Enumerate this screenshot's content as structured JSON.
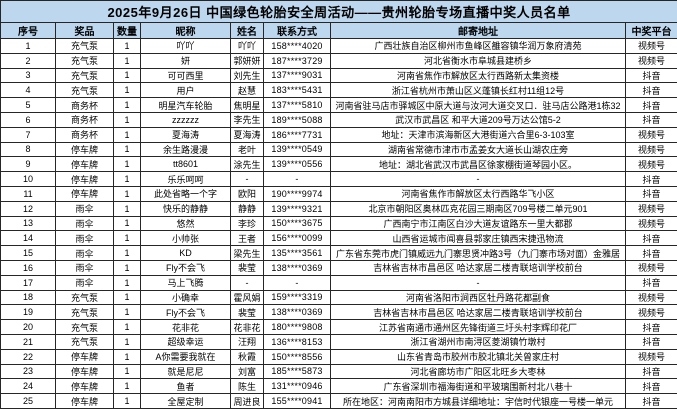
{
  "title": "2025年9月26日 中国绿色轮胎安全周活动——贵州轮胎专场直播中奖人员名单",
  "columns": [
    "序号",
    "奖品",
    "数量",
    "昵称",
    "姓名",
    "联系方式",
    "邮寄地址",
    "中奖平台"
  ],
  "colors": {
    "header_bg": "#bdd7ee",
    "border": "#262626",
    "row_bg": "#ffffff",
    "text": "#000000"
  },
  "rows": [
    {
      "no": "1",
      "prize": "充气泵",
      "qty": "1",
      "nickname": "吖吖",
      "name": "吖吖",
      "contact": "158****4020",
      "address": "广西壮族自治区柳州市鱼峰区雒容镇华润万象府清苑",
      "platform": "视频号"
    },
    {
      "no": "2",
      "prize": "充气泵",
      "qty": "1",
      "nickname": "妍",
      "name": "郭妍妍",
      "contact": "187****3729",
      "address": "河北省衡水市阜城县建桥乡",
      "platform": "视频号"
    },
    {
      "no": "3",
      "prize": "充气泵",
      "qty": "1",
      "nickname": "可可西里",
      "name": "刘先生",
      "contact": "137****9031",
      "address": "河南省焦作市解放区太行西路新太集资楼",
      "platform": "抖音"
    },
    {
      "no": "4",
      "prize": "充气泵",
      "qty": "1",
      "nickname": "用户",
      "name": "赵慧",
      "contact": "183****5431",
      "address": "浙江省杭州市萧山区义蓬镇长红村11组12号",
      "platform": "抖音"
    },
    {
      "no": "5",
      "prize": "商务杯",
      "qty": "1",
      "nickname": "明星汽车轮胎",
      "name": "焦明星",
      "contact": "137****5810",
      "address": "河南省驻马店市驿城区中原大道与汝河大道交叉口．驻马店公路港1栋32",
      "platform": "抖音"
    },
    {
      "no": "6",
      "prize": "商务杯",
      "qty": "1",
      "nickname": "zzzzzz",
      "name": "李先生",
      "contact": "189****5088",
      "address": "武汉市武昌区 和平大道209号万达公馆5-2",
      "platform": "抖音"
    },
    {
      "no": "7",
      "prize": "商务杯",
      "qty": "1",
      "nickname": "夏海涛",
      "name": "夏海涛",
      "contact": "186****7731",
      "address": "地址：天津市滨海新区大港街道六合里6-3-103室",
      "platform": "视频号"
    },
    {
      "no": "8",
      "prize": "停车牌",
      "qty": "1",
      "nickname": "余生路漫漫",
      "name": "老叶",
      "contact": "139****0549",
      "address": "湖南省常德市津市市孟姜女大道长山湖农庄旁",
      "platform": "视频号"
    },
    {
      "no": "9",
      "prize": "停车牌",
      "qty": "1",
      "nickname": "tt8601",
      "name": "涂先生",
      "contact": "139****0556",
      "address": "地址：湖北省武汉市武昌区徐家棚街道琴园小区。",
      "platform": "视频号"
    },
    {
      "no": "10",
      "prize": "停车牌",
      "qty": "1",
      "nickname": "乐乐呵呵",
      "name": "-",
      "contact": "-",
      "address": "-",
      "platform": "抖音"
    },
    {
      "no": "11",
      "prize": "停车牌",
      "qty": "1",
      "nickname": "此处省略一个字",
      "name": "欧阳",
      "contact": "190****9974",
      "address": "河南省焦作市解放区太行西路华飞小区",
      "platform": "抖音"
    },
    {
      "no": "12",
      "prize": "雨伞",
      "qty": "1",
      "nickname": "快乐的静静",
      "name": "静静",
      "contact": "139****9321",
      "address": "北京市朝阳区奥林匹克花园三期南区709号楼二单元901",
      "platform": "视频号"
    },
    {
      "no": "13",
      "prize": "雨伞",
      "qty": "1",
      "nickname": "悠然",
      "name": "李珍",
      "contact": "150****3675",
      "address": "广西南宁市江南区白沙大道友谊路东一里大都郡",
      "platform": "视频号"
    },
    {
      "no": "14",
      "prize": "雨伞",
      "qty": "1",
      "nickname": "小帅张",
      "name": "王者",
      "contact": "156****0099",
      "address": "山西省运城市闻喜县郭家庄镇西宋捷迅物流",
      "platform": "抖音"
    },
    {
      "no": "15",
      "prize": "雨伞",
      "qty": "1",
      "nickname": "KD",
      "name": "梁先生",
      "contact": "135****3561",
      "address": "广东省东莞市虎门镇威远九门寨思贤冲路3号（九门寨市场对面）金雅居",
      "platform": "抖音"
    },
    {
      "no": "16",
      "prize": "雨伞",
      "qty": "1",
      "nickname": "Fly不会飞",
      "name": "裴莹",
      "contact": "138****0369",
      "address": "吉林省吉林市昌邑区 哈达家居二楼青联培训学校前台",
      "platform": "视频号"
    },
    {
      "no": "17",
      "prize": "雨伞",
      "qty": "1",
      "nickname": "马上飞腾",
      "name": "-",
      "contact": "-",
      "address": "-",
      "platform": "抖音"
    },
    {
      "no": "18",
      "prize": "充气泵",
      "qty": "1",
      "nickname": "小确幸",
      "name": "霍风娟",
      "contact": "159****3319",
      "address": "河南省洛阳市涧西区牡丹路花都副食",
      "platform": "视频号"
    },
    {
      "no": "19",
      "prize": "充气泵",
      "qty": "1",
      "nickname": "Fly不会飞",
      "name": "裴莹",
      "contact": "138****0369",
      "address": "吉林省吉林市昌邑区 哈达家居二楼青联培训学校前台",
      "platform": "视频号"
    },
    {
      "no": "20",
      "prize": "充气泵",
      "qty": "1",
      "nickname": "花非花",
      "name": "花非花",
      "contact": "180****9808",
      "address": "江苏省南通市通州区先锋街道三圩头村李辉印花厂",
      "platform": "抖音"
    },
    {
      "no": "21",
      "prize": "充气泵",
      "qty": "1",
      "nickname": "超级幸运",
      "name": "汪翔",
      "contact": "136****8153",
      "address": "浙江省湖州市南浔区菱湖镇竹墩村",
      "platform": "抖音"
    },
    {
      "no": "22",
      "prize": "停车牌",
      "qty": "1",
      "nickname": "A你需要我就在",
      "name": "秋霞",
      "contact": "150****8556",
      "address": "山东省青岛市胶州市胶北镇北关曾家庄村",
      "platform": "视频号"
    },
    {
      "no": "23",
      "prize": "停车牌",
      "qty": "1",
      "nickname": "就是尼尼",
      "name": "刘富",
      "contact": "185****5873",
      "address": "河北省廊坊市广阳区北旺乡大枣林",
      "platform": "抖音"
    },
    {
      "no": "24",
      "prize": "停车牌",
      "qty": "1",
      "nickname": "鱼者",
      "name": "陈生",
      "contact": "131****0946",
      "address": "广东省深圳市福海街道和平玻璃围新村北八巷十",
      "platform": "抖音"
    },
    {
      "no": "25",
      "prize": "停车牌",
      "qty": "1",
      "nickname": "全屋定制",
      "name": "周进良",
      "contact": "155****0941",
      "address": "所在地区：河南南阳市方城县详细地址：宇信时代银座一号楼一单元",
      "platform": "抖音"
    }
  ]
}
